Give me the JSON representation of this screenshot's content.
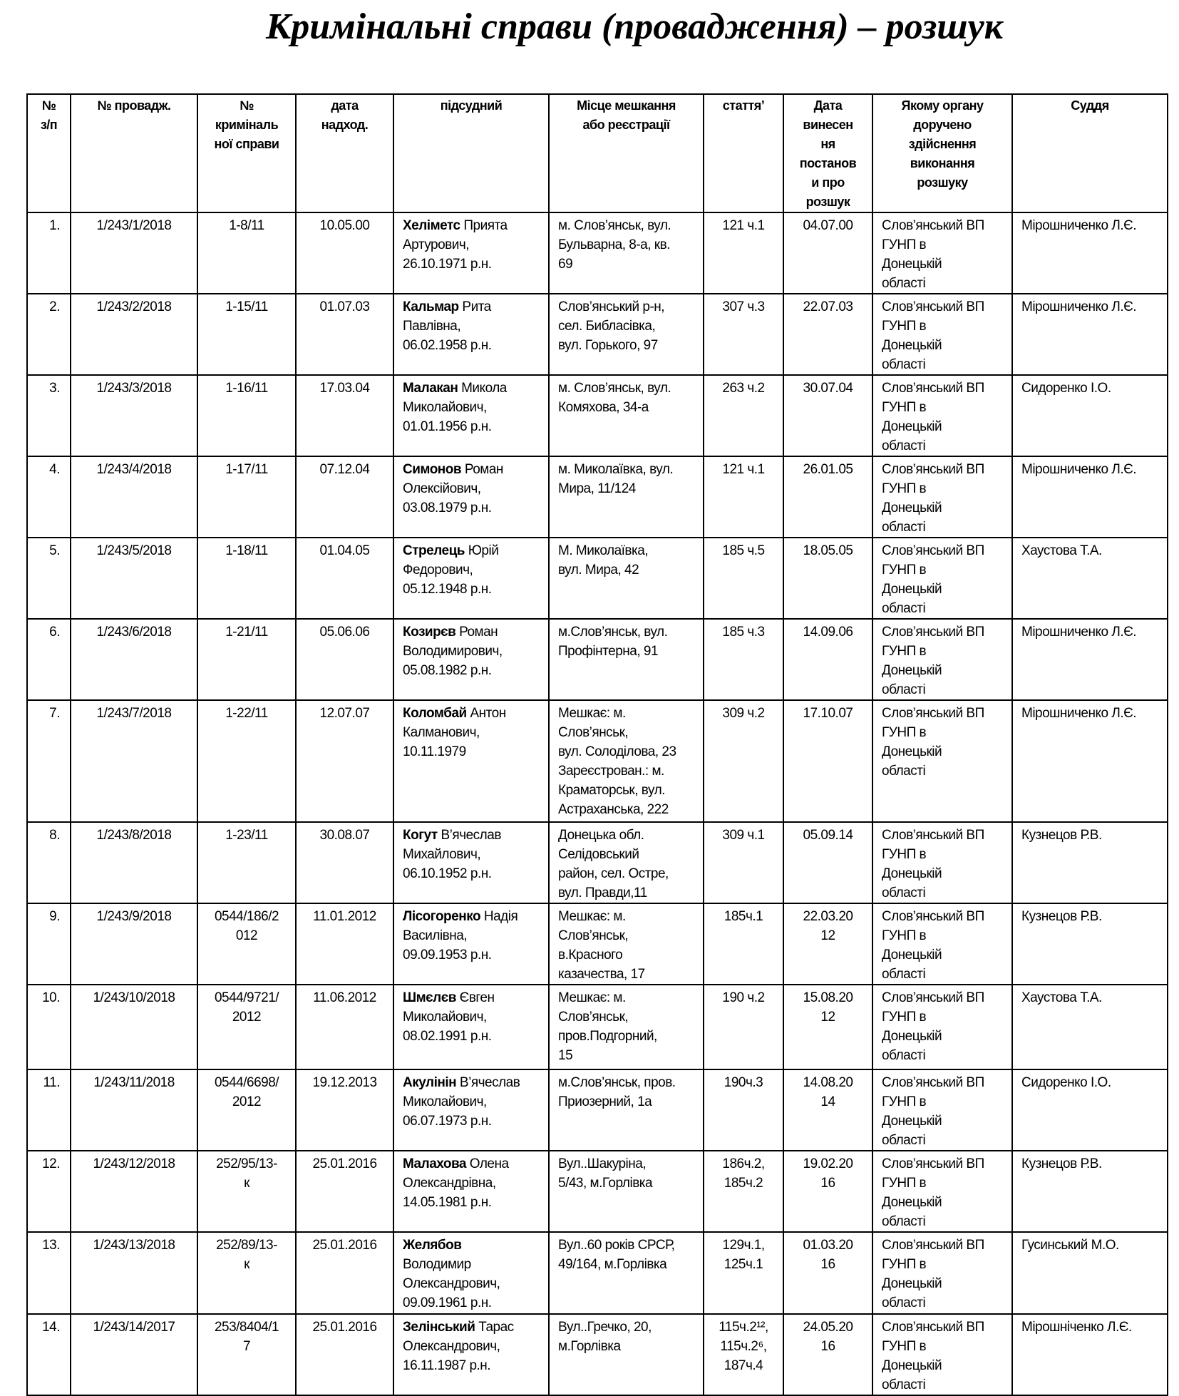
{
  "title": "Кримінальні справи (провадження) – розшук",
  "headers": [
    "№\nз/п",
    "№ провадж.",
    "№\nкриміналь\nної справи",
    "дата\nнадход.",
    "підсудний",
    "Місце мешкання\nабо реєстрації",
    "статтяʼ",
    "Дата\nвинесен\nня\nпостанов\nи про\nрозшук",
    "Якому органу\nдоручено\nздійснення\nвиконання\nрозшуку",
    "Суддя"
  ],
  "rows": [
    {
      "n": "1.",
      "proc": "1/243/1/2018",
      "case": "1-8/11",
      "date": "10.05.00",
      "surname": "Хеліметс",
      "rest": "  Прията\nАртурович,\n26.10.1971 р.н.",
      "address": "м. Слов’янськ, вул.\nБульварна, 8-а, кв.\n69",
      "article": "121 ч.1",
      "search_date": "04.07.00",
      "organ": "Слов’янський ВП\nГУНП в\nДонецькій\nобласті",
      "judge": "Мірошниченко Л.Є."
    },
    {
      "n": "2.",
      "proc": "1/243/2/2018",
      "case": "1-15/11",
      "date": "01.07.03",
      "surname": "Кальмар",
      "rest": " Рита\nПавлівна,\n06.02.1958 р.н.",
      "address": "Слов’янський р-н,\nсел. Библасівка,\nвул. Горького, 97",
      "article": "307 ч.3",
      "search_date": "22.07.03",
      "organ": "Слов’янський ВП\nГУНП в\nДонецькій\nобласті",
      "judge": "Мірошниченко Л.Є."
    },
    {
      "n": "3.",
      "proc": "1/243/3/2018",
      "case": "1-16/11",
      "date": "17.03.04",
      "surname": "Малакан",
      "rest": " Микола\nМиколайович,\n01.01.1956 р.н.",
      "address": "м. Слов’янськ, вул.\nКомяхова, 34-а",
      "article": "263 ч.2",
      "search_date": "30.07.04",
      "organ": "Слов’янський ВП\nГУНП в\nДонецькій\nобласті",
      "judge": "Сидоренко І.О."
    },
    {
      "n": "4.",
      "proc": "1/243/4/2018",
      "case": "1-17/11",
      "date": "07.12.04",
      "surname": "Симонов",
      "rest": " Роман\nОлексійович,\n03.08.1979 р.н.",
      "address": "м. Миколаївка, вул.\nМира, 11/124",
      "article": "121 ч.1",
      "search_date": "26.01.05",
      "organ": "Слов’янський ВП\nГУНП в\nДонецькій\nобласті",
      "judge": "Мірошниченко Л.Є."
    },
    {
      "n": "5.",
      "proc": "1/243/5/2018",
      "case": "1-18/11",
      "date": "01.04.05",
      "surname": "Стрелець",
      "rest": " Юрій\nФедорович,\n05.12.1948 р.н.",
      "address": "М. Миколаївка,\nвул. Мира, 42",
      "article": "185 ч.5",
      "search_date": "18.05.05",
      "organ": "Слов’янський ВП\nГУНП в\nДонецькій\nобласті",
      "judge": "Хаустова Т.А."
    },
    {
      "n": "6.",
      "proc": "1/243/6/2018",
      "case": "1-21/11",
      "date": "05.06.06",
      "surname": "Козирєв",
      "rest": " Роман\nВолодимирович,\n05.08.1982 р.н.",
      "address": "м.Слов’янськ, вул.\nПрофінтерна, 91",
      "article": "185 ч.3",
      "search_date": "14.09.06",
      "organ": "Слов’янський ВП\nГУНП в\nДонецькій\nобласті",
      "judge": "Мірошниченко Л.Є."
    },
    {
      "n": "7.",
      "proc": "1/243/7/2018",
      "case": "1-22/11",
      "date": "12.07.07",
      "surname": "Коломбай",
      "rest": " Антон\nКалманович,\n10.11.1979",
      "address": "Мешкає: м.\nСлов’янськ,\nвул. Солоділова, 23\nЗареєстрован.: м.\nКраматорськ, вул.\nАстраханська, 222",
      "article": "309 ч.2",
      "search_date": "17.10.07",
      "organ": "Слов’янський ВП\nГУНП в\nДонецькій\nобласті",
      "judge": "Мірошниченко Л.Є."
    },
    {
      "n": "8.",
      "proc": "1/243/8/2018",
      "case": "1-23/11",
      "date": "30.08.07",
      "surname": "Когут",
      "rest": " В’ячеслав\nМихайлович,\n06.10.1952 р.н.",
      "address": "Донецька обл.\nСелідовський\nрайон, сел. Остре,\nвул. Правди,11",
      "article": "309 ч.1",
      "search_date": "05.09.14",
      "organ": "Слов’янський ВП\nГУНП в\nДонецькій\nобласті",
      "judge": "Кузнецов Р.В."
    },
    {
      "n": "9.",
      "proc": "1/243/9/2018",
      "case": "0544/186/2\n012",
      "date": "11.01.2012",
      "surname": "Лісогоренко",
      "rest": " Надія\nВасилівна,\n09.09.1953 р.н.",
      "address": "Мешкає: м.\nСлов’янськ,\nв.Красного\nказачества, 17",
      "article": "185ч.1",
      "search_date": "22.03.20\n12",
      "organ": "Слов’янський ВП\nГУНП в\nДонецькій\nобласті",
      "judge": "Кузнецов Р.В."
    },
    {
      "n": "10.",
      "proc": "1/243/10/2018",
      "case": "0544/9721/\n2012",
      "date": "11.06.2012",
      "surname": "Шмєлєв",
      "rest": " Євген\nМиколайович,\n08.02.1991 р.н.",
      "address": "Мешкає: м.\nСлов’янськ,\nпров.Подгорний,\n15",
      "article": "190 ч.2",
      "search_date": "15.08.20\n12",
      "organ": "Слов’янський ВП\nГУНП в\nДонецькій\nобласті",
      "judge": "Хаустова Т.А."
    },
    {
      "n": "11.",
      "proc": "1/243/11/2018",
      "case": "0544/6698/\n2012",
      "date": "19.12.2013",
      "surname": "Акулінін",
      "rest": " В’ячеслав\nМиколайович,\n06.07.1973 р.н.",
      "address": "м.Слов’янськ, пров.\nПриозерний, 1а",
      "article": "190ч.3",
      "search_date": "14.08.20\n14",
      "organ": "Слов’янський ВП\nГУНП в\nДонецькій\nобласті",
      "judge": "Сидоренко І.О."
    },
    {
      "n": "12.",
      "proc": "1/243/12/2018",
      "case": "252/95/13-\nк",
      "date": "25.01.2016",
      "surname": "Малахова",
      "rest": " Олена\nОлександрівна,\n14.05.1981 р.н.",
      "address": "Вул..Шакуріна,\n5/43, м.Горлівка",
      "article": "186ч.2,\n185ч.2",
      "search_date": "19.02.20\n16",
      "organ": "Слов’янський ВП\nГУНП в\nДонецькій\nобласті",
      "judge": "Кузнецов Р.В."
    },
    {
      "n": "13.",
      "proc": "1/243/13/2018",
      "case": "252/89/13-\nк",
      "date": "25.01.2016",
      "surname": "Желябов",
      "rest": "\nВолодимир\nОлександрович,\n09.09.1961 р.н.",
      "address": "Вул..60 років СРСР,\n49/164, м.Горлівка",
      "article": "129ч.1,\n125ч.1",
      "search_date": "01.03.20\n16",
      "organ": "Слов’янський ВП\nГУНП в\nДонецькій\nобласті",
      "judge": "Гусинський М.О."
    },
    {
      "n": "14.",
      "proc": "1/243/14/2017",
      "case": "253/8404/1\n7",
      "date": "25.01.2016",
      "surname": "Зелінський",
      "rest": " Тарас\nОлександрович,\n16.11.1987 р.н.",
      "address": "Вул..Гречко, 20,\nм.Горлівка",
      "article": "115ч.2¹²,\n115ч.2⁶,\n187ч.4",
      "search_date": "24.05.20\n16",
      "organ": "Слов’янський ВП\nГУНП в\nДонецькій\nобласті",
      "judge": "Мірошніченко Л.Є."
    }
  ]
}
